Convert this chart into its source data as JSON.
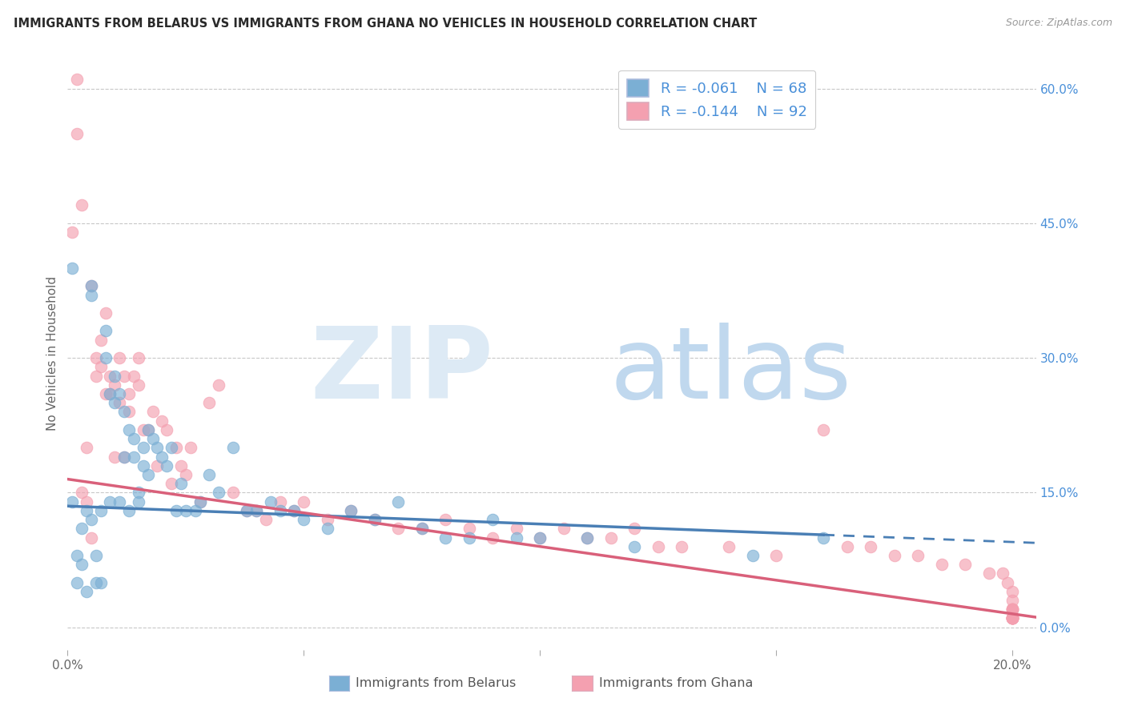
{
  "title": "IMMIGRANTS FROM BELARUS VS IMMIGRANTS FROM GHANA NO VEHICLES IN HOUSEHOLD CORRELATION CHART",
  "source": "Source: ZipAtlas.com",
  "ylabel": "No Vehicles in Household",
  "color_belarus": "#7bafd4",
  "color_ghana": "#f4a0b0",
  "line_belarus": "#4a7fb5",
  "line_ghana": "#d9607a",
  "legend_R_belarus": "-0.061",
  "legend_N_belarus": "68",
  "legend_R_ghana": "-0.144",
  "legend_N_ghana": "92",
  "watermark_zip": "ZIP",
  "watermark_atlas": "atlas",
  "xlim": [
    0.0,
    0.205
  ],
  "ylim": [
    -0.025,
    0.635
  ],
  "scatter_belarus_x": [
    0.001,
    0.001,
    0.002,
    0.002,
    0.003,
    0.003,
    0.004,
    0.004,
    0.005,
    0.005,
    0.005,
    0.006,
    0.006,
    0.007,
    0.007,
    0.008,
    0.008,
    0.009,
    0.009,
    0.01,
    0.01,
    0.011,
    0.011,
    0.012,
    0.012,
    0.013,
    0.013,
    0.014,
    0.014,
    0.015,
    0.015,
    0.016,
    0.016,
    0.017,
    0.017,
    0.018,
    0.019,
    0.02,
    0.021,
    0.022,
    0.023,
    0.024,
    0.025,
    0.027,
    0.028,
    0.03,
    0.032,
    0.035,
    0.038,
    0.04,
    0.043,
    0.045,
    0.048,
    0.05,
    0.055,
    0.06,
    0.065,
    0.07,
    0.075,
    0.08,
    0.085,
    0.09,
    0.095,
    0.1,
    0.11,
    0.12,
    0.145,
    0.16
  ],
  "scatter_belarus_y": [
    0.4,
    0.14,
    0.08,
    0.05,
    0.11,
    0.07,
    0.13,
    0.04,
    0.38,
    0.37,
    0.12,
    0.08,
    0.05,
    0.13,
    0.05,
    0.33,
    0.3,
    0.26,
    0.14,
    0.25,
    0.28,
    0.14,
    0.26,
    0.24,
    0.19,
    0.22,
    0.13,
    0.21,
    0.19,
    0.15,
    0.14,
    0.18,
    0.2,
    0.17,
    0.22,
    0.21,
    0.2,
    0.19,
    0.18,
    0.2,
    0.13,
    0.16,
    0.13,
    0.13,
    0.14,
    0.17,
    0.15,
    0.2,
    0.13,
    0.13,
    0.14,
    0.13,
    0.13,
    0.12,
    0.11,
    0.13,
    0.12,
    0.14,
    0.11,
    0.1,
    0.1,
    0.12,
    0.1,
    0.1,
    0.1,
    0.09,
    0.08,
    0.1
  ],
  "scatter_ghana_x": [
    0.001,
    0.002,
    0.002,
    0.003,
    0.003,
    0.004,
    0.004,
    0.005,
    0.005,
    0.006,
    0.006,
    0.007,
    0.007,
    0.008,
    0.008,
    0.009,
    0.009,
    0.01,
    0.01,
    0.011,
    0.011,
    0.012,
    0.012,
    0.013,
    0.013,
    0.014,
    0.015,
    0.015,
    0.016,
    0.017,
    0.018,
    0.019,
    0.02,
    0.021,
    0.022,
    0.023,
    0.024,
    0.025,
    0.026,
    0.028,
    0.03,
    0.032,
    0.035,
    0.038,
    0.04,
    0.042,
    0.045,
    0.048,
    0.05,
    0.055,
    0.06,
    0.065,
    0.07,
    0.075,
    0.08,
    0.085,
    0.09,
    0.095,
    0.1,
    0.105,
    0.11,
    0.115,
    0.12,
    0.125,
    0.13,
    0.14,
    0.15,
    0.16,
    0.165,
    0.17,
    0.175,
    0.18,
    0.185,
    0.19,
    0.195,
    0.198,
    0.199,
    0.2,
    0.2,
    0.2,
    0.2,
    0.2,
    0.2,
    0.2,
    0.2,
    0.2,
    0.2,
    0.2,
    0.2,
    0.2,
    0.2,
    0.2
  ],
  "scatter_ghana_y": [
    0.44,
    0.55,
    0.61,
    0.15,
    0.47,
    0.14,
    0.2,
    0.38,
    0.1,
    0.3,
    0.28,
    0.29,
    0.32,
    0.26,
    0.35,
    0.26,
    0.28,
    0.27,
    0.19,
    0.25,
    0.3,
    0.28,
    0.19,
    0.24,
    0.26,
    0.28,
    0.27,
    0.3,
    0.22,
    0.22,
    0.24,
    0.18,
    0.23,
    0.22,
    0.16,
    0.2,
    0.18,
    0.17,
    0.2,
    0.14,
    0.25,
    0.27,
    0.15,
    0.13,
    0.13,
    0.12,
    0.14,
    0.13,
    0.14,
    0.12,
    0.13,
    0.12,
    0.11,
    0.11,
    0.12,
    0.11,
    0.1,
    0.11,
    0.1,
    0.11,
    0.1,
    0.1,
    0.11,
    0.09,
    0.09,
    0.09,
    0.08,
    0.22,
    0.09,
    0.09,
    0.08,
    0.08,
    0.07,
    0.07,
    0.06,
    0.06,
    0.05,
    0.04,
    0.03,
    0.02,
    0.01,
    0.01,
    0.02,
    0.01,
    0.02,
    0.01,
    0.01,
    0.02,
    0.01,
    0.01,
    0.01,
    0.01
  ]
}
